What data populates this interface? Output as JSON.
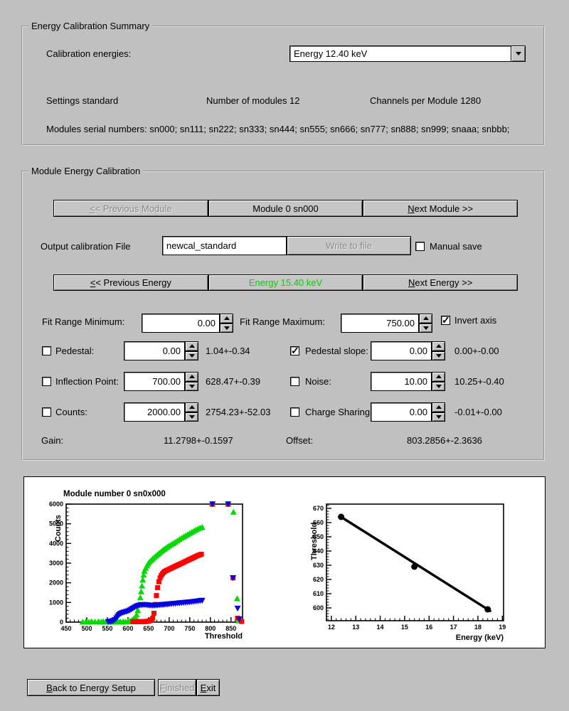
{
  "colors": {
    "background": "#c0c0c0",
    "energy_green": "#00d000",
    "series_green": "#00d800",
    "series_red": "#ff0000",
    "series_blue": "#0000e0"
  },
  "summary": {
    "title": "Energy Calibration Summary",
    "calibration_energies_label": "Calibration energies:",
    "energy_select_value": "Energy 12.40 keV",
    "settings": "Settings standard",
    "num_modules": "Number of modules 12",
    "channels_per_module": "Channels per Module 1280",
    "serial_numbers": "Modules serial numbers: sn000; sn111; sn222; sn333; sn444; sn555; sn666; sn777; sn888; sn999; snaaa; snbbb;"
  },
  "module_cal": {
    "title": "Module Energy Calibration",
    "prev_module": {
      "u": "<",
      "rest": "< Previous Module"
    },
    "module_label": "Module 0 sn000",
    "next_module": {
      "u": "N",
      "rest": "ext Module >>"
    },
    "output_file_label": "Output calibration File",
    "output_file_value": "newcal_standard",
    "write_button": "Write to file",
    "manual_save": {
      "label": "Manual save",
      "checked": false
    },
    "prev_energy": {
      "u": "<",
      "rest": "< Previous Energy"
    },
    "energy_label": "Energy 15.40 keV",
    "next_energy": {
      "u": "N",
      "rest": "ext Energy >>"
    },
    "fit_min_label": "Fit Range Minimum:",
    "fit_min_value": "0.00",
    "fit_max_label": "Fit Range Maximum:",
    "fit_max_value": "750.00",
    "invert_axis": {
      "label": "Invert axis",
      "checked": true
    },
    "pedestal": {
      "label": "Pedestal:",
      "value": "0.00",
      "fit": "1.04+-0.34",
      "checked": false
    },
    "pedestal_slope": {
      "label": "Pedestal slope:",
      "value": "0.00",
      "fit": "0.00+-0.00",
      "checked": true
    },
    "inflection": {
      "label": "Inflection Point:",
      "value": "700.00",
      "fit": "628.47+-0.39",
      "checked": false
    },
    "noise": {
      "label": "Noise:",
      "value": "10.00",
      "fit": "10.25+-0.40",
      "checked": false
    },
    "counts": {
      "label": "Counts:",
      "value": "2000.00",
      "fit": "2754.23+-52.03",
      "checked": false
    },
    "charge_sharing": {
      "label": "Charge Sharing",
      "value": "0.00",
      "fit": "-0.01+-0.00",
      "checked": false
    },
    "gain_label": "Gain:",
    "gain_value": "11.2798+-0.1597",
    "offset_label": "Offset:",
    "offset_value": "803.2856+-2.3636"
  },
  "footer": {
    "back": {
      "u": "B",
      "rest": "ack to Energy Setup"
    },
    "finished": {
      "u": "F",
      "rest": "inished"
    },
    "exit": {
      "u": "E",
      "rest": "xit"
    }
  },
  "chart_data": [
    {
      "type": "scatter",
      "title": "Module number 0 sn0x000",
      "xlabel": "Threshold",
      "ylabel": "Counts",
      "xlim": [
        450,
        878
      ],
      "ylim": [
        0,
        6000
      ],
      "xticks": [
        450,
        500,
        550,
        600,
        650,
        700,
        750,
        800,
        850
      ],
      "yticks": [
        0,
        1000,
        2000,
        3000,
        4000,
        5000,
        6000
      ],
      "grid": false,
      "legend": "none",
      "series": [
        {
          "name": "scurve-green",
          "marker": "triangle-up",
          "color": "#00d800",
          "points": [
            [
              490,
              15
            ],
            [
              498,
              25
            ],
            [
              505,
              10
            ],
            [
              512,
              30
            ],
            [
              520,
              18
            ],
            [
              528,
              25
            ],
            [
              535,
              12
            ],
            [
              540,
              30
            ],
            [
              546,
              15
            ],
            [
              552,
              22
            ],
            [
              558,
              12
            ],
            [
              564,
              25
            ],
            [
              570,
              15
            ],
            [
              576,
              20
            ],
            [
              582,
              12
            ],
            [
              588,
              22
            ],
            [
              594,
              15
            ],
            [
              600,
              35
            ],
            [
              605,
              60
            ],
            [
              610,
              110
            ],
            [
              614,
              170
            ],
            [
              618,
              260
            ],
            [
              621,
              380
            ],
            [
              624,
              600
            ],
            [
              627,
              900
            ],
            [
              630,
              1250
            ],
            [
              632,
              1550
            ],
            [
              634,
              1850
            ],
            [
              636,
              2150
            ],
            [
              638,
              2400
            ],
            [
              640,
              2600
            ],
            [
              643,
              2750
            ],
            [
              646,
              2870
            ],
            [
              649,
              2970
            ],
            [
              652,
              3060
            ],
            [
              656,
              3140
            ],
            [
              660,
              3220
            ],
            [
              664,
              3300
            ],
            [
              668,
              3370
            ],
            [
              672,
              3440
            ],
            [
              676,
              3510
            ],
            [
              680,
              3580
            ],
            [
              684,
              3650
            ],
            [
              688,
              3710
            ],
            [
              692,
              3770
            ],
            [
              696,
              3830
            ],
            [
              700,
              3890
            ],
            [
              705,
              3950
            ],
            [
              710,
              4010
            ],
            [
              715,
              4070
            ],
            [
              720,
              4140
            ],
            [
              725,
              4210
            ],
            [
              730,
              4280
            ],
            [
              735,
              4340
            ],
            [
              740,
              4400
            ],
            [
              745,
              4460
            ],
            [
              750,
              4520
            ],
            [
              755,
              4580
            ],
            [
              760,
              4640
            ],
            [
              765,
              4700
            ],
            [
              770,
              4750
            ],
            [
              775,
              4790
            ],
            [
              780,
              4830
            ],
            [
              805,
              6000
            ],
            [
              843,
              6000
            ],
            [
              856,
              5600
            ],
            [
              865,
              1200
            ],
            [
              868,
              80
            ]
          ]
        },
        {
          "name": "scurve-red",
          "marker": "square",
          "color": "#ff0000",
          "points": [
            [
              612,
              20
            ],
            [
              615,
              25
            ],
            [
              618,
              18
            ],
            [
              621,
              25
            ],
            [
              624,
              20
            ],
            [
              627,
              25
            ],
            [
              630,
              20
            ],
            [
              633,
              28
            ],
            [
              636,
              22
            ],
            [
              639,
              30
            ],
            [
              642,
              25
            ],
            [
              645,
              35
            ],
            [
              648,
              45
            ],
            [
              651,
              60
            ],
            [
              654,
              80
            ],
            [
              657,
              110
            ],
            [
              660,
              200
            ],
            [
              663,
              450
            ],
            [
              666,
              900
            ],
            [
              669,
              1350
            ],
            [
              672,
              1750
            ],
            [
              675,
              2050
            ],
            [
              678,
              2250
            ],
            [
              681,
              2380
            ],
            [
              684,
              2470
            ],
            [
              687,
              2540
            ],
            [
              690,
              2590
            ],
            [
              694,
              2630
            ],
            [
              698,
              2670
            ],
            [
              702,
              2710
            ],
            [
              706,
              2750
            ],
            [
              710,
              2790
            ],
            [
              714,
              2830
            ],
            [
              718,
              2870
            ],
            [
              722,
              2910
            ],
            [
              726,
              2950
            ],
            [
              730,
              2990
            ],
            [
              734,
              3030
            ],
            [
              738,
              3070
            ],
            [
              742,
              3110
            ],
            [
              746,
              3150
            ],
            [
              750,
              3190
            ],
            [
              754,
              3230
            ],
            [
              758,
              3270
            ],
            [
              762,
              3310
            ],
            [
              766,
              3350
            ],
            [
              770,
              3390
            ],
            [
              774,
              3420
            ],
            [
              778,
              3450
            ],
            [
              805,
              6000
            ],
            [
              843,
              6000
            ],
            [
              855,
              2250
            ],
            [
              866,
              200
            ],
            [
              876,
              30
            ]
          ]
        },
        {
          "name": "scurve-blue",
          "marker": "triangle-down",
          "color": "#0000e0",
          "points": [
            [
              552,
              15
            ],
            [
              556,
              25
            ],
            [
              560,
              40
            ],
            [
              564,
              70
            ],
            [
              568,
              120
            ],
            [
              572,
              200
            ],
            [
              575,
              290
            ],
            [
              578,
              370
            ],
            [
              581,
              420
            ],
            [
              584,
              455
            ],
            [
              588,
              485
            ],
            [
              592,
              510
            ],
            [
              596,
              535
            ],
            [
              600,
              560
            ],
            [
              604,
              600
            ],
            [
              608,
              650
            ],
            [
              612,
              700
            ],
            [
              616,
              750
            ],
            [
              620,
              795
            ],
            [
              624,
              830
            ],
            [
              628,
              855
            ],
            [
              632,
              870
            ],
            [
              636,
              880
            ],
            [
              640,
              885
            ],
            [
              644,
              875
            ],
            [
              648,
              865
            ],
            [
              652,
              855
            ],
            [
              656,
              848
            ],
            [
              660,
              845
            ],
            [
              664,
              848
            ],
            [
              668,
              855
            ],
            [
              672,
              862
            ],
            [
              676,
              870
            ],
            [
              680,
              878
            ],
            [
              684,
              886
            ],
            [
              688,
              894
            ],
            [
              692,
              902
            ],
            [
              696,
              910
            ],
            [
              700,
              918
            ],
            [
              705,
              928
            ],
            [
              710,
              938
            ],
            [
              715,
              948
            ],
            [
              720,
              958
            ],
            [
              725,
              968
            ],
            [
              730,
              978
            ],
            [
              735,
              988
            ],
            [
              740,
              998
            ],
            [
              745,
              1008
            ],
            [
              750,
              1018
            ],
            [
              755,
              1030
            ],
            [
              760,
              1042
            ],
            [
              765,
              1056
            ],
            [
              770,
              1070
            ],
            [
              775,
              1085
            ],
            [
              780,
              1100
            ],
            [
              805,
              6000
            ],
            [
              843,
              6000
            ],
            [
              855,
              2250
            ],
            [
              866,
              700
            ],
            [
              870,
              150
            ]
          ]
        }
      ]
    },
    {
      "type": "scatter",
      "title": "",
      "xlabel": "Energy (keV)",
      "ylabel": "Threshold",
      "xlim": [
        11.8,
        19.05
      ],
      "ylim": [
        591,
        673
      ],
      "xticks": [
        12,
        13,
        14,
        15,
        16,
        17,
        18,
        19
      ],
      "yticks": [
        600,
        610,
        620,
        630,
        640,
        650,
        660,
        670
      ],
      "grid": false,
      "legend": "none",
      "line": {
        "color": "#000000",
        "width": 3.5,
        "x1": 12.35,
        "y1": 664.5,
        "x2": 18.5,
        "y2": 597.9
      },
      "series": [
        {
          "name": "calibration-points",
          "marker": "circle",
          "color": "#000000",
          "points": [
            [
              12.4,
              664
            ],
            [
              15.4,
              629
            ],
            [
              18.4,
              599
            ]
          ]
        }
      ]
    }
  ]
}
